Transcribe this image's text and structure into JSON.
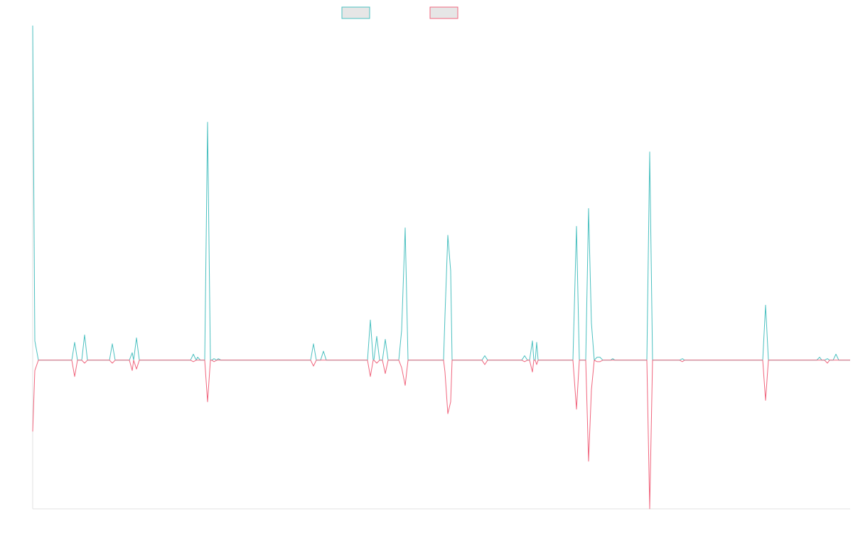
{
  "chart_data": {
    "type": "line",
    "title": "",
    "xlabel": "",
    "ylabel": "",
    "legend": {
      "placement": "top-center",
      "labels": [
        "",
        ""
      ]
    },
    "grid": false,
    "ylim": [
      -1.0,
      2.25
    ],
    "xlim": [
      0,
      1150
    ],
    "series": [
      {
        "name": "",
        "color": "#4bc0c0",
        "fill": "#e6e6e6",
        "points": [
          [
            0,
            2.25
          ],
          [
            3,
            0.13
          ],
          [
            8,
            0
          ],
          [
            55,
            0
          ],
          [
            59,
            0.12
          ],
          [
            63,
            0
          ],
          [
            69,
            0
          ],
          [
            73,
            0.17
          ],
          [
            77,
            0
          ],
          [
            108,
            0
          ],
          [
            112,
            0.11
          ],
          [
            116,
            0
          ],
          [
            136,
            0
          ],
          [
            140,
            0.05
          ],
          [
            142,
            0
          ],
          [
            146,
            0.15
          ],
          [
            150,
            0
          ],
          [
            222,
            0
          ],
          [
            226,
            0.04
          ],
          [
            230,
            0
          ],
          [
            232,
            0.02
          ],
          [
            236,
            0
          ],
          [
            242,
            0
          ],
          [
            246,
            1.6
          ],
          [
            250,
            0
          ],
          [
            252,
            0
          ],
          [
            255,
            0.01
          ],
          [
            259,
            0
          ],
          [
            261,
            0.01
          ],
          [
            265,
            0
          ],
          [
            391,
            0
          ],
          [
            395,
            0.11
          ],
          [
            399,
            0
          ],
          [
            405,
            0
          ],
          [
            409,
            0.06
          ],
          [
            413,
            0
          ],
          [
            471,
            0
          ],
          [
            475,
            0.27
          ],
          [
            479,
            0
          ],
          [
            480,
            0
          ],
          [
            484,
            0.16
          ],
          [
            488,
            0
          ],
          [
            492,
            0
          ],
          [
            496,
            0.14
          ],
          [
            500,
            0
          ],
          [
            515,
            0
          ],
          [
            519,
            0.2
          ],
          [
            524,
            0.89
          ],
          [
            528,
            0
          ],
          [
            578,
            0
          ],
          [
            580,
            0.3
          ],
          [
            584,
            0.84
          ],
          [
            588,
            0.6
          ],
          [
            590,
            0
          ],
          [
            632,
            0
          ],
          [
            636,
            0.03
          ],
          [
            640,
            0
          ],
          [
            688,
            0
          ],
          [
            692,
            0.03
          ],
          [
            696,
            0
          ],
          [
            699,
            0
          ],
          [
            703,
            0.13
          ],
          [
            705,
            0
          ],
          [
            707,
            0
          ],
          [
            709,
            0.12
          ],
          [
            711,
            0
          ],
          [
            760,
            0
          ],
          [
            765,
            0.9
          ],
          [
            769,
            0
          ],
          [
            778,
            0
          ],
          [
            782,
            1.02
          ],
          [
            786,
            0.25
          ],
          [
            790,
            0
          ],
          [
            794,
            0.02
          ],
          [
            798,
            0.02
          ],
          [
            802,
            0
          ],
          [
            813,
            0
          ],
          [
            816,
            0.01
          ],
          [
            819,
            0
          ],
          [
            864,
            0
          ],
          [
            868,
            1.4
          ],
          [
            872,
            0
          ],
          [
            910,
            0
          ],
          [
            914,
            0.01
          ],
          [
            917,
            0
          ],
          [
            1027,
            0
          ],
          [
            1031,
            0.37
          ],
          [
            1035,
            0
          ],
          [
            1103,
            0
          ],
          [
            1107,
            0.02
          ],
          [
            1110,
            0
          ],
          [
            1114,
            0
          ],
          [
            1118,
            0.01
          ],
          [
            1121,
            0
          ],
          [
            1126,
            0
          ],
          [
            1130,
            0.04
          ],
          [
            1134,
            0
          ],
          [
            1150,
            0
          ]
        ]
      },
      {
        "name": "",
        "color": "#f0657d",
        "fill": "#e6e6e6",
        "points": [
          [
            0,
            -0.48
          ],
          [
            3,
            -0.07
          ],
          [
            8,
            0
          ],
          [
            55,
            0
          ],
          [
            59,
            -0.11
          ],
          [
            63,
            0
          ],
          [
            69,
            0
          ],
          [
            73,
            -0.02
          ],
          [
            77,
            0
          ],
          [
            108,
            0
          ],
          [
            112,
            -0.02
          ],
          [
            116,
            0
          ],
          [
            136,
            0
          ],
          [
            140,
            -0.07
          ],
          [
            142,
            0
          ],
          [
            146,
            -0.06
          ],
          [
            150,
            0
          ],
          [
            222,
            0
          ],
          [
            226,
            -0.01
          ],
          [
            230,
            0
          ],
          [
            242,
            0
          ],
          [
            246,
            -0.28
          ],
          [
            250,
            0
          ],
          [
            252,
            0
          ],
          [
            255,
            -0.01
          ],
          [
            259,
            0
          ],
          [
            391,
            0
          ],
          [
            395,
            -0.04
          ],
          [
            399,
            0
          ],
          [
            471,
            0
          ],
          [
            475,
            -0.11
          ],
          [
            479,
            0
          ],
          [
            480,
            0
          ],
          [
            484,
            -0.02
          ],
          [
            488,
            0
          ],
          [
            492,
            0
          ],
          [
            496,
            -0.09
          ],
          [
            500,
            0
          ],
          [
            515,
            0
          ],
          [
            519,
            -0.05
          ],
          [
            524,
            -0.17
          ],
          [
            528,
            0
          ],
          [
            578,
            0
          ],
          [
            580,
            -0.08
          ],
          [
            584,
            -0.36
          ],
          [
            588,
            -0.28
          ],
          [
            590,
            0
          ],
          [
            632,
            0
          ],
          [
            636,
            -0.03
          ],
          [
            640,
            0
          ],
          [
            688,
            0
          ],
          [
            692,
            -0.01
          ],
          [
            696,
            0
          ],
          [
            699,
            0
          ],
          [
            703,
            -0.08
          ],
          [
            705,
            0
          ],
          [
            707,
            0
          ],
          [
            709,
            -0.03
          ],
          [
            711,
            0
          ],
          [
            760,
            0
          ],
          [
            765,
            -0.33
          ],
          [
            769,
            0
          ],
          [
            778,
            0
          ],
          [
            782,
            -0.68
          ],
          [
            786,
            -0.2
          ],
          [
            790,
            0
          ],
          [
            794,
            -0.01
          ],
          [
            798,
            -0.01
          ],
          [
            802,
            0
          ],
          [
            864,
            0
          ],
          [
            868,
            -1.0
          ],
          [
            872,
            0
          ],
          [
            910,
            0
          ],
          [
            914,
            -0.01
          ],
          [
            917,
            0
          ],
          [
            1027,
            0
          ],
          [
            1031,
            -0.27
          ],
          [
            1035,
            0
          ],
          [
            1103,
            0
          ],
          [
            1114,
            0
          ],
          [
            1118,
            -0.02
          ],
          [
            1121,
            0
          ],
          [
            1150,
            0
          ]
        ]
      }
    ]
  }
}
